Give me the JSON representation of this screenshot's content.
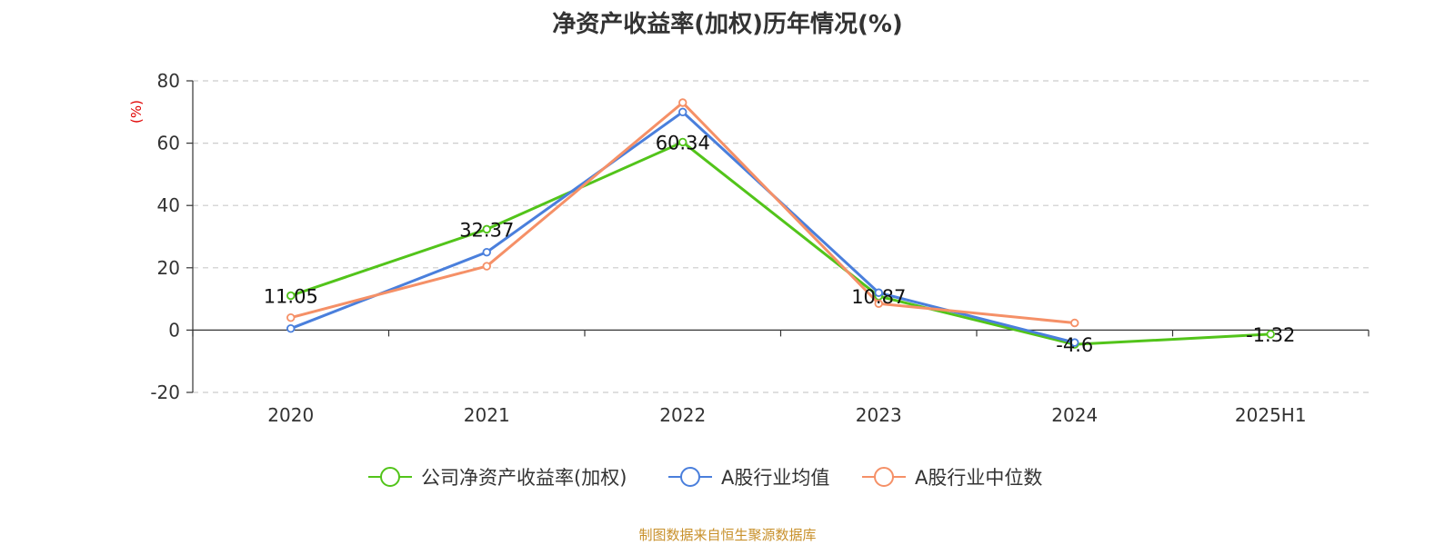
{
  "chart_data": {
    "type": "line",
    "title": "净资产收益率(加权)历年情况(%)",
    "ylabel": "(%)",
    "xlabel": "",
    "categories": [
      "2020",
      "2021",
      "2022",
      "2023",
      "2024",
      "2025H1"
    ],
    "ylim": [
      -20,
      80
    ],
    "yticks": [
      -20,
      0,
      20,
      40,
      60,
      80
    ],
    "grid": true,
    "legend_position": "bottom",
    "series": [
      {
        "name": "公司净资产收益率(加权)",
        "color": "#52c41a",
        "values": [
          11.05,
          32.37,
          60.34,
          10.87,
          -4.6,
          -1.32
        ],
        "labels": [
          "11.05",
          "32.37",
          "60.34",
          "10.87",
          "-4.6",
          "-1.32"
        ]
      },
      {
        "name": "A股行业均值",
        "color": "#4a7fdc",
        "values": [
          0.5,
          25,
          70,
          12,
          -4,
          null
        ]
      },
      {
        "name": "A股行业中位数",
        "color": "#f59067",
        "values": [
          4,
          20.5,
          73,
          8.5,
          2.3,
          null
        ]
      }
    ]
  },
  "source_text": "制图数据来自恒生聚源数据库"
}
